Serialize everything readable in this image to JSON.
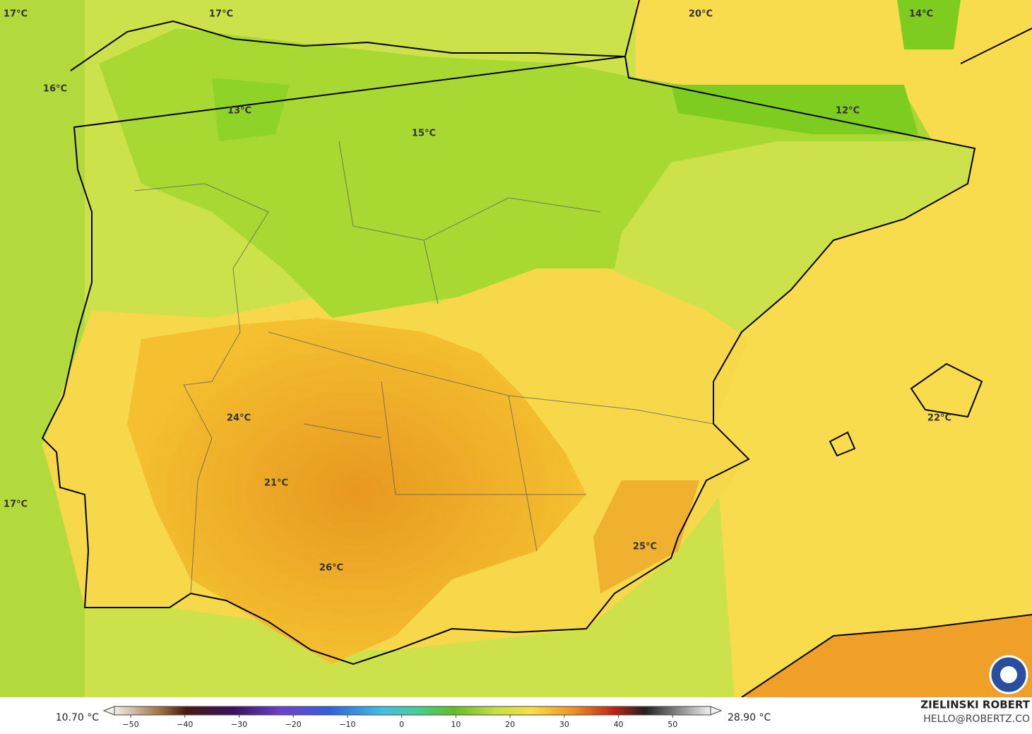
{
  "map": {
    "temperature_labels": [
      "17°C",
      "17°C",
      "20°C",
      "14°C",
      "16°C",
      "13°C",
      "15°C",
      "12°C",
      "24°C",
      "21°C",
      "26°C",
      "25°C",
      "22°C",
      "17°C"
    ],
    "colorbar": {
      "min_label": "10.70 °C",
      "max_label": "28.90 °C",
      "lim": [
        -53,
        57
      ],
      "ticks": [
        {
          "value": -50,
          "label": "−50"
        },
        {
          "value": -40,
          "label": "−40"
        },
        {
          "value": -30,
          "label": "−30"
        },
        {
          "value": -20,
          "label": "−20"
        },
        {
          "value": -10,
          "label": "−10"
        },
        0,
        10,
        20,
        30,
        40,
        50
      ]
    },
    "credit": {
      "name": "ZIELINSKI ROBERT",
      "contact": "HELLO@ROBERTZ.CO"
    }
  }
}
